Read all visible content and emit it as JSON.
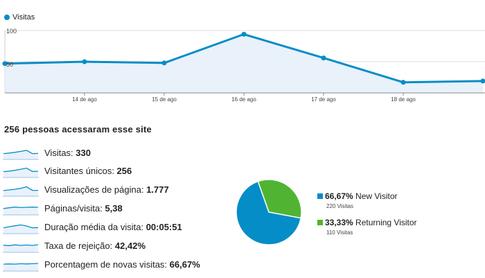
{
  "legend": {
    "series_name": "Visitas",
    "color": "#058dc7"
  },
  "chart_data": {
    "type": "area",
    "x_tick_labels": [
      "14 de ago",
      "15 de ago",
      "16 de ago",
      "17 de ago",
      "18 de ago"
    ],
    "y_tick_labels": [
      "100",
      "50"
    ],
    "ylim": [
      0,
      100
    ],
    "series": [
      {
        "name": "Visitas",
        "values": [
          47,
          50,
          48,
          94,
          56,
          17,
          19
        ]
      }
    ],
    "grid": true,
    "line_color": "#058dc7",
    "fill_color": "#e9f1fb"
  },
  "summary": {
    "headline": "256 pessoas acessaram esse site",
    "metrics": [
      {
        "label": "Visitas:",
        "value": "330",
        "spark": [
          40,
          45,
          52,
          60,
          70,
          40,
          42
        ]
      },
      {
        "label": "Visitantes únicos:",
        "value": "256",
        "spark": [
          40,
          45,
          52,
          62,
          72,
          42,
          44
        ]
      },
      {
        "label": "Visualizações de página:",
        "value": "1.777",
        "spark": [
          38,
          44,
          50,
          58,
          72,
          40,
          40
        ]
      },
      {
        "label": "Páginas/visita:",
        "value": "5,38",
        "spark": [
          45,
          52,
          58,
          54,
          56,
          58,
          56
        ]
      },
      {
        "label": "Duração média da visita:",
        "value": "00:05:51",
        "spark": [
          40,
          50,
          58,
          66,
          56,
          40,
          42
        ]
      },
      {
        "label": "Taxa de rejeição:",
        "value": "42,42%",
        "spark": [
          52,
          48,
          55,
          50,
          54,
          50,
          56
        ]
      },
      {
        "label": "Porcentagem de novas visitas:",
        "value": "66,67%",
        "spark": [
          50,
          52,
          50,
          54,
          52,
          54,
          56
        ]
      }
    ]
  },
  "pie": {
    "slices": [
      {
        "name": "New Visitor",
        "percent": "66,67%",
        "fraction": 0.6667,
        "count_label": "220 Visitas",
        "color": "#058dc7"
      },
      {
        "name": "Returning Visitor",
        "percent": "33,33%",
        "fraction": 0.3333,
        "count_label": "110 Visitas",
        "color": "#50b432"
      }
    ]
  }
}
